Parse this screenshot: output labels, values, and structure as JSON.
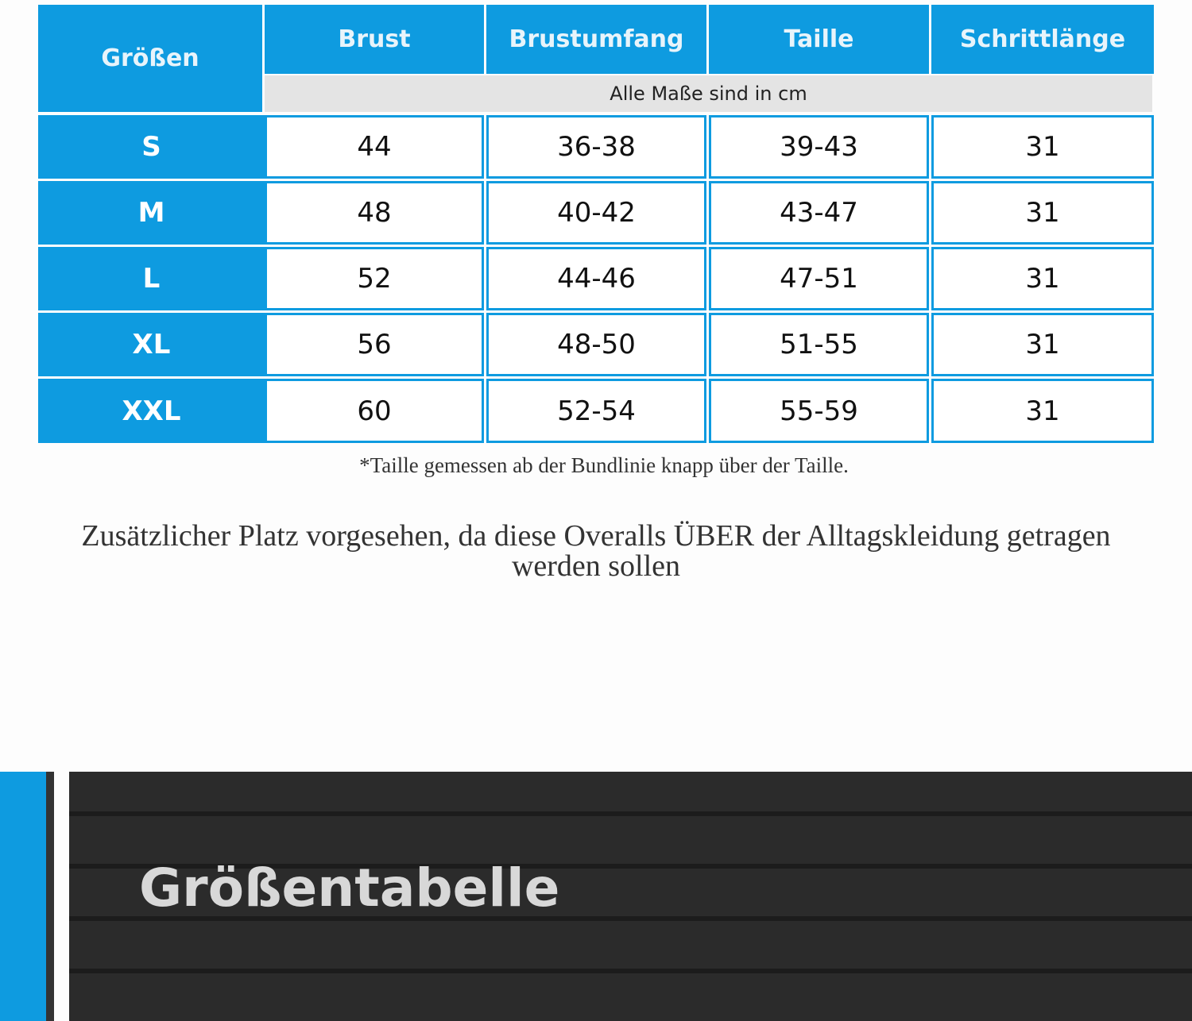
{
  "table": {
    "headers": [
      "Größen",
      "Brust",
      "Brustumfang",
      "Taille",
      "Schrittlänge"
    ],
    "unit_note": "Alle Maße sind in cm",
    "rows": [
      [
        "S",
        "44",
        "36-38",
        "39-43",
        "31"
      ],
      [
        "M",
        "48",
        "40-42",
        "43-47",
        "31"
      ],
      [
        "L",
        "52",
        "44-46",
        "47-51",
        "31"
      ],
      [
        "XL",
        "56",
        "48-50",
        "51-55",
        "31"
      ],
      [
        "XXL",
        "60",
        "52-54",
        "55-59",
        "31"
      ]
    ]
  },
  "footnote": "*Taille gemessen ab der Bundlinie knapp über der Taille.",
  "note": "Zusätzlicher Platz vorgesehen, da diese Overalls ÜBER der Alltagskleidung getragen werden sollen",
  "banner": {
    "title": "Größentabelle"
  }
}
